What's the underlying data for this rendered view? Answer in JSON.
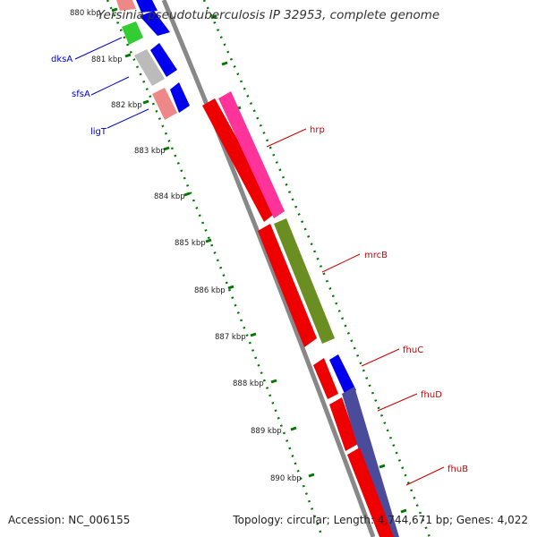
{
  "header": {
    "title": "Yersinia pseudotuberculosis IP 32953, complete genome"
  },
  "footer": {
    "accession": "Accession: NC_006155",
    "summary": "Topology: circular; Length: 4,744,671 bp; Genes: 4,022"
  },
  "ticks": [
    "880 kbp",
    "881 kbp",
    "882 kbp",
    "883 kbp",
    "884 kbp",
    "885 kbp",
    "886 kbp",
    "887 kbp",
    "888 kbp",
    "889 kbp",
    "890 kbp"
  ],
  "genes": {
    "reverse": [
      {
        "name": "dksA",
        "color": "#0000cc"
      },
      {
        "name": "sfsA",
        "color": "#0000cc"
      },
      {
        "name": "ligT",
        "color": "#0000cc"
      }
    ],
    "forward": [
      {
        "name": "hrp",
        "color": "#cc0000"
      },
      {
        "name": "mrcB",
        "color": "#cc0000"
      },
      {
        "name": "fhuC",
        "color": "#cc0000"
      },
      {
        "name": "fhuD",
        "color": "#cc0000"
      },
      {
        "name": "fhuB",
        "color": "#cc0000"
      }
    ]
  },
  "colors": {
    "backbone": "#888888",
    "tick_dots": "#007700",
    "gene_red": "#ee0000",
    "gene_pink": "#ff3399",
    "gene_olive": "#6b8e23",
    "gene_slate": "#4b4b9b",
    "gene_blue": "#0000ee",
    "gene_green": "#33cc33",
    "gene_grey": "#bbbbbb",
    "gene_salmon": "#ee8888"
  }
}
